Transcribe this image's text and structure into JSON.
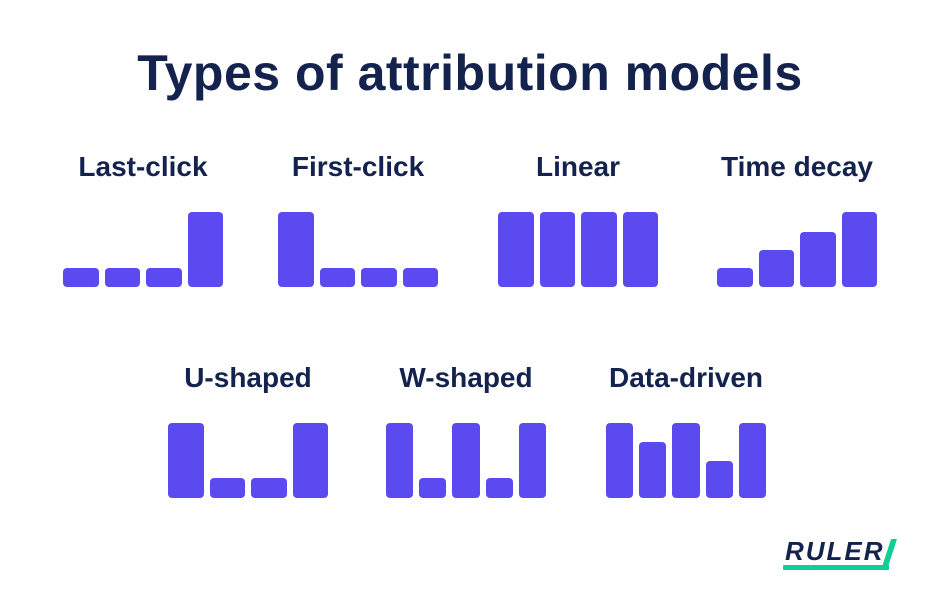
{
  "page": {
    "title": "Types of attribution models",
    "background": "#FFFFFF"
  },
  "colors": {
    "bar_purple": "#5A4AF0",
    "text_navy": "#14224E",
    "accent_teal": "#10CE96"
  },
  "chart_data": [
    {
      "type": "bar",
      "title": "Last-click",
      "values": [
        25,
        25,
        25,
        100
      ],
      "ylim": [
        0,
        100
      ],
      "axes_shown": false,
      "grid": false
    },
    {
      "type": "bar",
      "title": "First-click",
      "values": [
        100,
        25,
        25,
        25
      ],
      "ylim": [
        0,
        100
      ],
      "axes_shown": false,
      "grid": false
    },
    {
      "type": "bar",
      "title": "Linear",
      "values": [
        100,
        100,
        100,
        100
      ],
      "ylim": [
        0,
        100
      ],
      "axes_shown": false,
      "grid": false
    },
    {
      "type": "bar",
      "title": "Time decay",
      "values": [
        25,
        50,
        73,
        100
      ],
      "ylim": [
        0,
        100
      ],
      "axes_shown": false,
      "grid": false
    },
    {
      "type": "bar",
      "title": "U-shaped",
      "values": [
        100,
        27,
        27,
        100
      ],
      "ylim": [
        0,
        100
      ],
      "axes_shown": false,
      "grid": false
    },
    {
      "type": "bar",
      "title": "W-shaped",
      "values": [
        100,
        27,
        100,
        27,
        100
      ],
      "ylim": [
        0,
        100
      ],
      "axes_shown": false,
      "grid": false
    },
    {
      "type": "bar",
      "title": "Data-driven",
      "values": [
        100,
        75,
        100,
        50,
        100
      ],
      "ylim": [
        0,
        100
      ],
      "axes_shown": false,
      "grid": false
    }
  ],
  "logo": {
    "brand": "RULER"
  }
}
